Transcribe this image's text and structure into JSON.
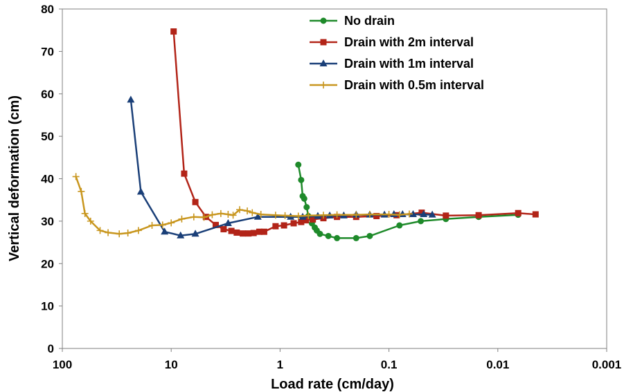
{
  "chart_data": {
    "type": "line",
    "title": "",
    "xlabel": "Load rate (cm/day)",
    "ylabel": "Vertical deformation (cm)",
    "x_scale": "log",
    "x_reversed": true,
    "xlim": [
      100,
      0.001
    ],
    "ylim": [
      0,
      80
    ],
    "x_ticks": [
      100,
      10,
      1,
      0.1,
      0.01,
      0.001
    ],
    "x_tick_labels": [
      "100",
      "10",
      "1",
      "0.1",
      "0.01",
      "0.001"
    ],
    "y_ticks": [
      0,
      10,
      20,
      30,
      40,
      50,
      60,
      70,
      80
    ],
    "y_tick_labels": [
      "0",
      "10",
      "20",
      "30",
      "40",
      "50",
      "60",
      "70",
      "80"
    ],
    "grid": false,
    "legend_position": "top-center",
    "series": [
      {
        "name": "No drain",
        "color": "#1e8a2a",
        "marker": "circle",
        "points": [
          [
            0.68,
            43.3
          ],
          [
            0.64,
            39.7
          ],
          [
            0.62,
            35.9
          ],
          [
            0.6,
            35.3
          ],
          [
            0.57,
            33.3
          ],
          [
            0.55,
            31.2
          ],
          [
            0.51,
            29.5
          ],
          [
            0.48,
            28.5
          ],
          [
            0.46,
            27.8
          ],
          [
            0.43,
            27.0
          ],
          [
            0.36,
            26.5
          ],
          [
            0.3,
            26.0
          ],
          [
            0.2,
            26.0
          ],
          [
            0.15,
            26.5
          ],
          [
            0.08,
            29.0
          ],
          [
            0.051,
            30.0
          ],
          [
            0.03,
            30.5
          ],
          [
            0.015,
            31.0
          ],
          [
            0.0065,
            31.5
          ]
        ]
      },
      {
        "name": "Drain with 2m interval",
        "color": "#b22418",
        "marker": "square",
        "points": [
          [
            9.5,
            74.7
          ],
          [
            7.6,
            41.2
          ],
          [
            6.0,
            34.5
          ],
          [
            4.8,
            31.0
          ],
          [
            3.9,
            29.1
          ],
          [
            3.3,
            28.1
          ],
          [
            2.8,
            27.7
          ],
          [
            2.5,
            27.3
          ],
          [
            2.2,
            27.1
          ],
          [
            1.95,
            27.1
          ],
          [
            1.75,
            27.2
          ],
          [
            1.55,
            27.5
          ],
          [
            1.4,
            27.5
          ],
          [
            1.1,
            28.8
          ],
          [
            0.92,
            29.0
          ],
          [
            0.75,
            29.5
          ],
          [
            0.64,
            29.8
          ],
          [
            0.58,
            30.2
          ],
          [
            0.5,
            30.4
          ],
          [
            0.4,
            30.7
          ],
          [
            0.3,
            31.0
          ],
          [
            0.2,
            31.0
          ],
          [
            0.13,
            31.2
          ],
          [
            0.085,
            31.4
          ],
          [
            0.05,
            32.0
          ],
          [
            0.03,
            31.3
          ],
          [
            0.015,
            31.4
          ],
          [
            0.0065,
            31.9
          ],
          [
            0.0045,
            31.6
          ]
        ]
      },
      {
        "name": "Drain with 1m interval",
        "color": "#1a3f78",
        "marker": "triangle",
        "points": [
          [
            23.5,
            58.6
          ],
          [
            19.0,
            36.9
          ],
          [
            11.5,
            27.5
          ],
          [
            8.2,
            26.6
          ],
          [
            6.0,
            27.0
          ],
          [
            3.0,
            29.5
          ],
          [
            1.6,
            31.0
          ],
          [
            0.8,
            31.0
          ],
          [
            0.62,
            31.0
          ],
          [
            0.45,
            31.2
          ],
          [
            0.35,
            31.3
          ],
          [
            0.26,
            31.3
          ],
          [
            0.2,
            31.5
          ],
          [
            0.15,
            31.5
          ],
          [
            0.11,
            31.5
          ],
          [
            0.09,
            31.6
          ],
          [
            0.075,
            31.6
          ],
          [
            0.06,
            31.6
          ],
          [
            0.048,
            31.6
          ],
          [
            0.04,
            31.5
          ]
        ]
      },
      {
        "name": "Drain with 0.5m interval",
        "color": "#c8961e",
        "marker": "plus",
        "points": [
          [
            75,
            40.5
          ],
          [
            67,
            37.0
          ],
          [
            62,
            31.8
          ],
          [
            55,
            30.0
          ],
          [
            45,
            27.8
          ],
          [
            38,
            27.3
          ],
          [
            30,
            27.0
          ],
          [
            25,
            27.2
          ],
          [
            20,
            27.8
          ],
          [
            15,
            29.0
          ],
          [
            12,
            29.1
          ],
          [
            10,
            29.6
          ],
          [
            8,
            30.5
          ],
          [
            6.2,
            31.0
          ],
          [
            5,
            30.9
          ],
          [
            4.2,
            31.5
          ],
          [
            3.5,
            31.8
          ],
          [
            3.0,
            31.6
          ],
          [
            2.7,
            31.4
          ],
          [
            2.35,
            32.7
          ],
          [
            2.0,
            32.4
          ],
          [
            1.8,
            32.0
          ],
          [
            1.5,
            31.6
          ],
          [
            1.1,
            31.4
          ],
          [
            0.9,
            31.3
          ],
          [
            0.68,
            31.2
          ],
          [
            0.55,
            31.3
          ],
          [
            0.4,
            31.4
          ],
          [
            0.3,
            31.5
          ],
          [
            0.2,
            31.5
          ],
          [
            0.15,
            31.6
          ],
          [
            0.1,
            31.6
          ],
          [
            0.08,
            31.5
          ],
          [
            0.065,
            31.7
          ]
        ]
      }
    ]
  }
}
